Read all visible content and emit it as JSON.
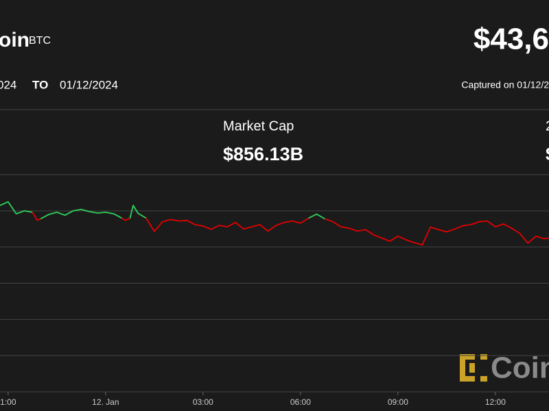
{
  "header": {
    "name": "oin",
    "symbol": "BTC",
    "price": "$43,6",
    "from_date": "024",
    "to_label": "TO",
    "to_date": "01/12/2024",
    "captured": "Captured on 01/12/2"
  },
  "stats": {
    "label": "Market Cap",
    "value": "$856.13B",
    "right_label": "2",
    "right_value": "$"
  },
  "watermark": "Coin",
  "chart_data": {
    "type": "line",
    "xlim": [
      -0.25,
      16.65
    ],
    "xticks": [
      {
        "value": 0,
        "label": "1:00"
      },
      {
        "value": 3,
        "label": "12. Jan"
      },
      {
        "value": 6,
        "label": "03:00"
      },
      {
        "value": 9,
        "label": "06:00"
      },
      {
        "value": 12,
        "label": "09:00"
      },
      {
        "value": 15,
        "label": "12:00"
      }
    ],
    "ylim": [
      40000,
      46000
    ],
    "yticks": [
      41000,
      42000,
      43000,
      44000,
      45000
    ],
    "grid": true,
    "series": [
      {
        "color": "#2fd35a",
        "x": [
          -0.25,
          0,
          0.25,
          0.5,
          0.75
        ],
        "values": [
          45150,
          45250,
          44920,
          45000,
          44960
        ]
      },
      {
        "color": "#e60000",
        "x": [
          0.75,
          0.9,
          1.0
        ],
        "values": [
          44960,
          44740,
          44780
        ]
      },
      {
        "color": "#2fd35a",
        "x": [
          1.0,
          1.25,
          1.5,
          1.75,
          2.0,
          2.25,
          2.5,
          2.75,
          3.0,
          3.25,
          3.5
        ],
        "values": [
          44780,
          44900,
          44960,
          44880,
          45000,
          45040,
          44980,
          44940,
          44960,
          44920,
          44800
        ]
      },
      {
        "color": "#e60000",
        "x": [
          3.5,
          3.6,
          3.75
        ],
        "values": [
          44800,
          44740,
          44790
        ]
      },
      {
        "color": "#2fd35a",
        "x": [
          3.75,
          3.85,
          4.0,
          4.25
        ],
        "values": [
          44790,
          45150,
          44930,
          44800
        ]
      },
      {
        "color": "#e60000",
        "x": [
          4.25,
          4.5,
          4.75,
          5.0,
          5.25,
          5.5,
          5.75,
          6.0,
          6.25,
          6.5,
          6.75,
          7.0,
          7.25,
          7.5,
          7.75,
          8.0,
          8.25,
          8.5,
          8.75,
          9.0,
          9.25
        ],
        "values": [
          44800,
          44430,
          44700,
          44760,
          44720,
          44740,
          44620,
          44580,
          44490,
          44600,
          44560,
          44680,
          44500,
          44560,
          44620,
          44440,
          44600,
          44680,
          44720,
          44660,
          44800
        ]
      },
      {
        "color": "#2fd35a",
        "x": [
          9.25,
          9.5,
          9.75
        ],
        "values": [
          44800,
          44910,
          44780
        ]
      },
      {
        "color": "#e60000",
        "x": [
          9.75,
          10.0,
          10.25,
          10.5,
          10.75,
          11.0,
          11.25,
          11.5,
          11.75,
          12.0,
          12.25,
          12.5,
          12.75,
          13.0,
          13.25,
          13.5,
          13.75,
          14.0,
          14.25,
          14.5,
          14.75,
          15.0,
          15.25,
          15.5,
          15.75,
          16.0,
          16.25,
          16.5,
          16.65
        ],
        "values": [
          44780,
          44700,
          44560,
          44520,
          44440,
          44480,
          44340,
          44250,
          44160,
          44300,
          44200,
          44120,
          44060,
          44550,
          44480,
          44420,
          44500,
          44590,
          44620,
          44700,
          44720,
          44560,
          44640,
          44520,
          44380,
          44110,
          44300,
          44230,
          44250
        ]
      }
    ]
  }
}
